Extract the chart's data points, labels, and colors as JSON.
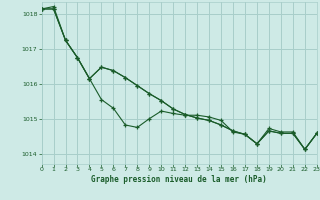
{
  "title": "Graphe pression niveau de la mer (hPa)",
  "bg_color": "#ceeae6",
  "grid_color": "#a8ceca",
  "line_color": "#1a5c2a",
  "xlim": [
    0,
    23
  ],
  "ylim": [
    1013.7,
    1018.35
  ],
  "yticks": [
    1014,
    1015,
    1016,
    1017,
    1018
  ],
  "xticks": [
    0,
    1,
    2,
    3,
    4,
    5,
    6,
    7,
    8,
    9,
    10,
    11,
    12,
    13,
    14,
    15,
    16,
    17,
    18,
    19,
    20,
    21,
    22,
    23
  ],
  "series1_x": [
    0,
    1,
    2,
    3,
    4,
    5,
    6,
    7,
    8,
    9,
    10,
    11,
    12,
    13,
    14,
    15,
    16,
    17,
    18,
    19,
    20,
    21,
    22,
    23
  ],
  "series1_y": [
    1018.15,
    1018.15,
    1017.25,
    1016.75,
    1016.15,
    1015.55,
    1015.3,
    1014.82,
    1014.75,
    1015.0,
    1015.22,
    1015.15,
    1015.1,
    1015.1,
    1015.05,
    1014.95,
    1014.62,
    1014.55,
    1014.28,
    1014.72,
    1014.62,
    1014.62,
    1014.12,
    1014.58
  ],
  "series2_x": [
    0,
    1,
    2,
    3,
    4,
    5,
    6,
    7,
    8,
    9,
    10,
    11,
    12,
    13,
    14,
    15,
    16,
    17,
    18,
    19,
    20,
    21,
    22,
    23
  ],
  "series2_y": [
    1018.15,
    1018.15,
    1017.25,
    1016.75,
    1016.15,
    1016.48,
    1016.38,
    1016.18,
    1015.95,
    1015.72,
    1015.52,
    1015.28,
    1015.12,
    1015.02,
    1014.95,
    1014.82,
    1014.65,
    1014.55,
    1014.28,
    1014.65,
    1014.58,
    1014.58,
    1014.12,
    1014.58
  ],
  "series3_x": [
    0,
    1,
    2,
    3,
    4,
    5,
    6,
    7,
    8,
    9,
    10,
    11,
    12,
    13,
    14,
    15,
    16,
    17,
    18,
    19,
    20,
    21,
    22,
    23
  ],
  "series3_y": [
    1018.15,
    1018.22,
    1017.25,
    1016.75,
    1016.15,
    1016.48,
    1016.38,
    1016.18,
    1015.95,
    1015.72,
    1015.52,
    1015.28,
    1015.12,
    1015.02,
    1014.95,
    1014.82,
    1014.65,
    1014.55,
    1014.28,
    1014.65,
    1014.58,
    1014.58,
    1014.12,
    1014.58
  ]
}
